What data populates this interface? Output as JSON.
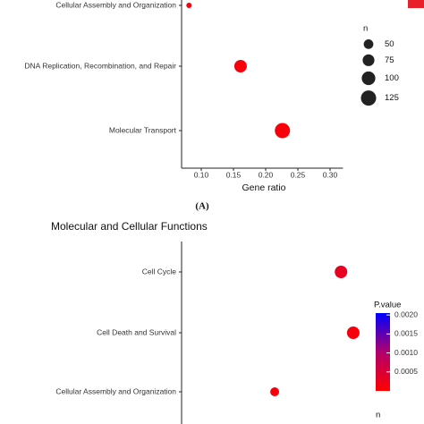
{
  "chart_data": [
    {
      "type": "dot",
      "categories": [
        "Cellular Assembly and Organization",
        "DNA Replication, Recombination, and Repair",
        "Molecular Transport"
      ],
      "values": [
        0.081,
        0.161,
        0.226
      ],
      "sizes": [
        16,
        85,
        125
      ],
      "pvalues": [
        0.0001,
        0.0001,
        0.0001
      ],
      "xlabel": "Gene ratio",
      "xlim": [
        0.07,
        0.32
      ],
      "xticks": [
        {
          "value": 0.1,
          "label": "0.10"
        },
        {
          "value": 0.15,
          "label": "0.15"
        },
        {
          "value": 0.2,
          "label": "0.20"
        },
        {
          "value": 0.25,
          "label": "0.25"
        },
        {
          "value": 0.3,
          "label": "0.30"
        }
      ],
      "size_legend": {
        "title": "n",
        "values": [
          50,
          75,
          100,
          125
        ]
      },
      "caption": "(A)"
    },
    {
      "type": "dot",
      "title": "Molecular and Cellular Functions",
      "categories": [
        "Cell Cycle",
        "Cell Death and Survival",
        "Cellular Assembly and Organization"
      ],
      "values": [
        0.317,
        0.336,
        0.214
      ],
      "sizes": [
        85,
        85,
        43
      ],
      "pvalues": [
        0.0003,
        0.0001,
        0.0001
      ],
      "xlim": [
        0.07,
        0.35
      ],
      "color_legend": {
        "title": "P.value",
        "clim": [
          0,
          0.00205
        ],
        "ticks": [
          {
            "value": 0.002,
            "label": "0.0020"
          },
          {
            "value": 0.0015,
            "label": "0.0015"
          },
          {
            "value": 0.001,
            "label": "0.0010"
          },
          {
            "value": 0.0005,
            "label": "0.0005"
          }
        ]
      },
      "size_legend": {
        "title": "n"
      }
    }
  ]
}
